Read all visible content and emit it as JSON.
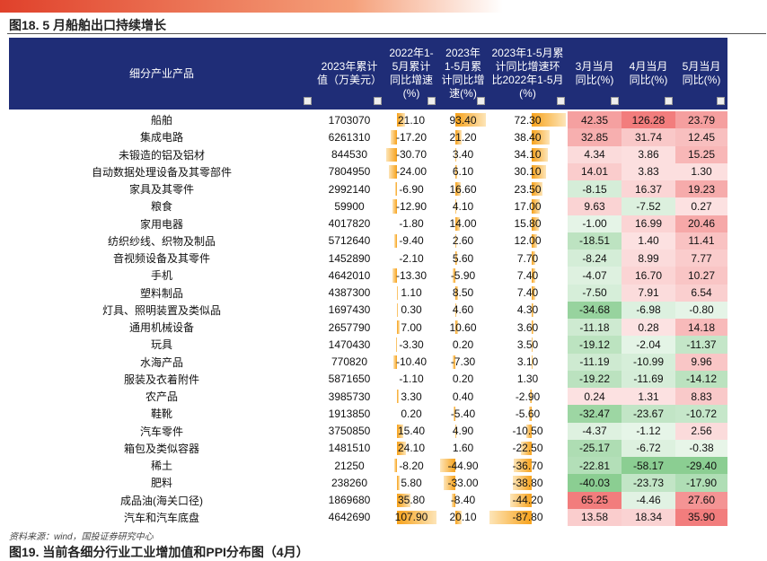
{
  "header": {
    "title": "图18. 5 月船舶出口持续增长"
  },
  "table": {
    "columns": [
      "细分产业产品",
      "2023年累计值（万美元）",
      "2022年1-5月累计同比增速(%)",
      "2023年1-5月累计同比增速(%)",
      "2023年1-5月累计同比增速环比2022年1-5月(%)",
      "3月当月同比(%)",
      "4月当月同比(%)",
      "5月当月同比(%)"
    ],
    "rows": [
      [
        "船舶",
        "1703070",
        "21.10",
        "93.40",
        "72.30",
        "42.35",
        "126.28",
        "23.79"
      ],
      [
        "集成电路",
        "6261310",
        "-17.20",
        "21.20",
        "38.40",
        "32.85",
        "31.74",
        "12.45"
      ],
      [
        "未锻造的铝及铝材",
        "844530",
        "-30.70",
        "3.40",
        "34.10",
        "4.34",
        "3.86",
        "15.25"
      ],
      [
        "自动数据处理设备及其零部件",
        "7804950",
        "-24.00",
        "6.10",
        "30.10",
        "14.01",
        "3.83",
        "1.30"
      ],
      [
        "家具及其零件",
        "2992140",
        "-6.90",
        "16.60",
        "23.50",
        "-8.15",
        "16.37",
        "19.23"
      ],
      [
        "粮食",
        "59900",
        "-12.90",
        "4.10",
        "17.00",
        "9.63",
        "-7.52",
        "0.27"
      ],
      [
        "家用电器",
        "4017820",
        "-1.80",
        "14.00",
        "15.80",
        "-1.00",
        "16.99",
        "20.46"
      ],
      [
        "纺织纱线、织物及制品",
        "5712640",
        "-9.40",
        "2.60",
        "12.00",
        "-18.51",
        "1.40",
        "11.41"
      ],
      [
        "音视频设备及其零件",
        "1452890",
        "-2.10",
        "5.60",
        "7.70",
        "-8.24",
        "8.99",
        "7.77"
      ],
      [
        "手机",
        "4642010",
        "-13.30",
        "-5.90",
        "7.40",
        "-4.07",
        "16.70",
        "10.27"
      ],
      [
        "塑料制品",
        "4387300",
        "1.10",
        "8.50",
        "7.40",
        "-7.50",
        "7.91",
        "6.54"
      ],
      [
        "灯具、照明装置及类似品",
        "1697430",
        "0.30",
        "4.60",
        "4.30",
        "-34.68",
        "-6.98",
        "-0.80"
      ],
      [
        "通用机械设备",
        "2657790",
        "7.00",
        "10.60",
        "3.60",
        "-11.18",
        "0.28",
        "14.18"
      ],
      [
        "玩具",
        "1470430",
        "-3.30",
        "0.20",
        "3.50",
        "-19.12",
        "-2.04",
        "-11.37"
      ],
      [
        "水海产品",
        "770820",
        "-10.40",
        "-7.30",
        "3.10",
        "-11.19",
        "-10.99",
        "9.96"
      ],
      [
        "服装及衣着附件",
        "5871650",
        "-1.10",
        "0.20",
        "1.30",
        "-19.22",
        "-11.69",
        "-14.12"
      ],
      [
        "农产品",
        "3985730",
        "3.30",
        "0.40",
        "-2.90",
        "0.24",
        "1.31",
        "8.83"
      ],
      [
        "鞋靴",
        "1913850",
        "0.20",
        "-5.40",
        "-5.60",
        "-32.47",
        "-23.67",
        "-10.72"
      ],
      [
        "汽车零件",
        "3750850",
        "15.40",
        "4.90",
        "-10.50",
        "-4.37",
        "-1.12",
        "2.56"
      ],
      [
        "箱包及类似容器",
        "1481510",
        "24.10",
        "1.60",
        "-22.50",
        "-25.17",
        "-6.72",
        "-0.38"
      ],
      [
        "稀土",
        "21250",
        "-8.20",
        "-44.90",
        "-36.70",
        "-22.81",
        "-58.17",
        "-29.40"
      ],
      [
        "肥料",
        "238260",
        "5.80",
        "-33.00",
        "-38.80",
        "-40.03",
        "-23.73",
        "-17.90"
      ],
      [
        "成品油(海关口径)",
        "1869680",
        "35.80",
        "-8.40",
        "-44.20",
        "65.25",
        "-4.46",
        "27.60"
      ],
      [
        "汽车和汽车底盘",
        "4642690",
        "107.90",
        "20.10",
        "-87.80",
        "13.58",
        "18.34",
        "35.90"
      ]
    ]
  },
  "footer": {
    "source": "资料来源：wind，国投证券研究中心",
    "next_title": "图19. 当前各细分行业工业增加值和PPI分布图（4月）"
  }
}
